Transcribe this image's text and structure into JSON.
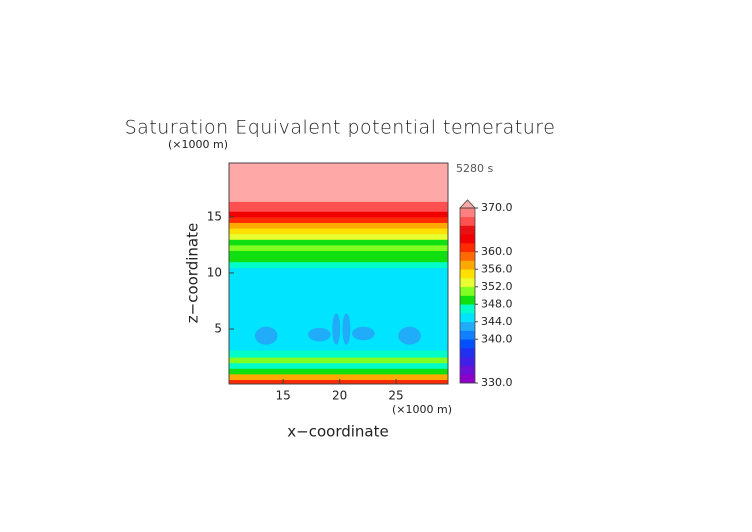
{
  "chart_data": {
    "type": "contour",
    "title": "Saturation Equivalent potential temerature",
    "time_label": "5280 s",
    "x_label": "x−coordinate",
    "y_label": "z−coordinate",
    "x_unit": "(×1000 m)",
    "y_unit": "(×1000 m)",
    "xlim": [
      10.2,
      29.6
    ],
    "ylim": [
      0.1,
      19.8
    ],
    "xticks": [
      15,
      20,
      25
    ],
    "yticks": [
      5,
      10,
      15
    ],
    "z": [
      0.25,
      0.75,
      1.25,
      1.75,
      2.25,
      2.75,
      3.5,
      5,
      7,
      9,
      10.25,
      10.75,
      11.25,
      11.75,
      12.25,
      12.75,
      13.25,
      13.75,
      14.25,
      14.75,
      15.25,
      15.75,
      17,
      19
    ],
    "values": [
      361,
      357,
      349,
      347,
      351,
      347,
      345,
      345,
      345,
      345,
      345,
      347,
      349,
      349,
      351,
      349,
      353,
      355,
      357,
      361,
      363,
      367,
      371,
      371
    ],
    "anomalies": [
      {
        "x": 13.5,
        "z": 4.4,
        "width": 2.0,
        "height": 1.6,
        "value": 343
      },
      {
        "x": 18.2,
        "z": 4.5,
        "width": 2.0,
        "height": 1.2,
        "value": 343
      },
      {
        "x": 19.7,
        "z": 5.0,
        "width": 0.7,
        "height": 2.8,
        "value": 343
      },
      {
        "x": 20.6,
        "z": 5.0,
        "width": 0.7,
        "height": 2.8,
        "value": 343
      },
      {
        "x": 22.1,
        "z": 4.6,
        "width": 2.0,
        "height": 1.2,
        "value": 343
      },
      {
        "x": 26.2,
        "z": 4.4,
        "width": 2.0,
        "height": 1.6,
        "value": 343
      }
    ],
    "colorbar_lim": [
      330,
      370
    ],
    "level_step": 2,
    "colors": [
      "#8a00c8",
      "#6a10d8",
      "#4020e8",
      "#2030f0",
      "#0050ff",
      "#1080ff",
      "#20acf8",
      "#00e4ff",
      "#00ffc8",
      "#10e010",
      "#80ff20",
      "#e8ff30",
      "#ffe000",
      "#ffa800",
      "#ff6a00",
      "#ff2a00",
      "#f00000",
      "#e81010",
      "#ff5050",
      "#ff8080",
      "#ffa8a8"
    ],
    "colorbar_ticks": [
      {
        "value": 370,
        "label": "370.0"
      },
      {
        "value": 360,
        "label": "360.0"
      },
      {
        "value": 356,
        "label": "356.0"
      },
      {
        "value": 352,
        "label": "352.0"
      },
      {
        "value": 348,
        "label": "348.0"
      },
      {
        "value": 344,
        "label": "344.0"
      },
      {
        "value": 340,
        "label": "340.0"
      },
      {
        "value": 330,
        "label": "330.0"
      }
    ]
  }
}
